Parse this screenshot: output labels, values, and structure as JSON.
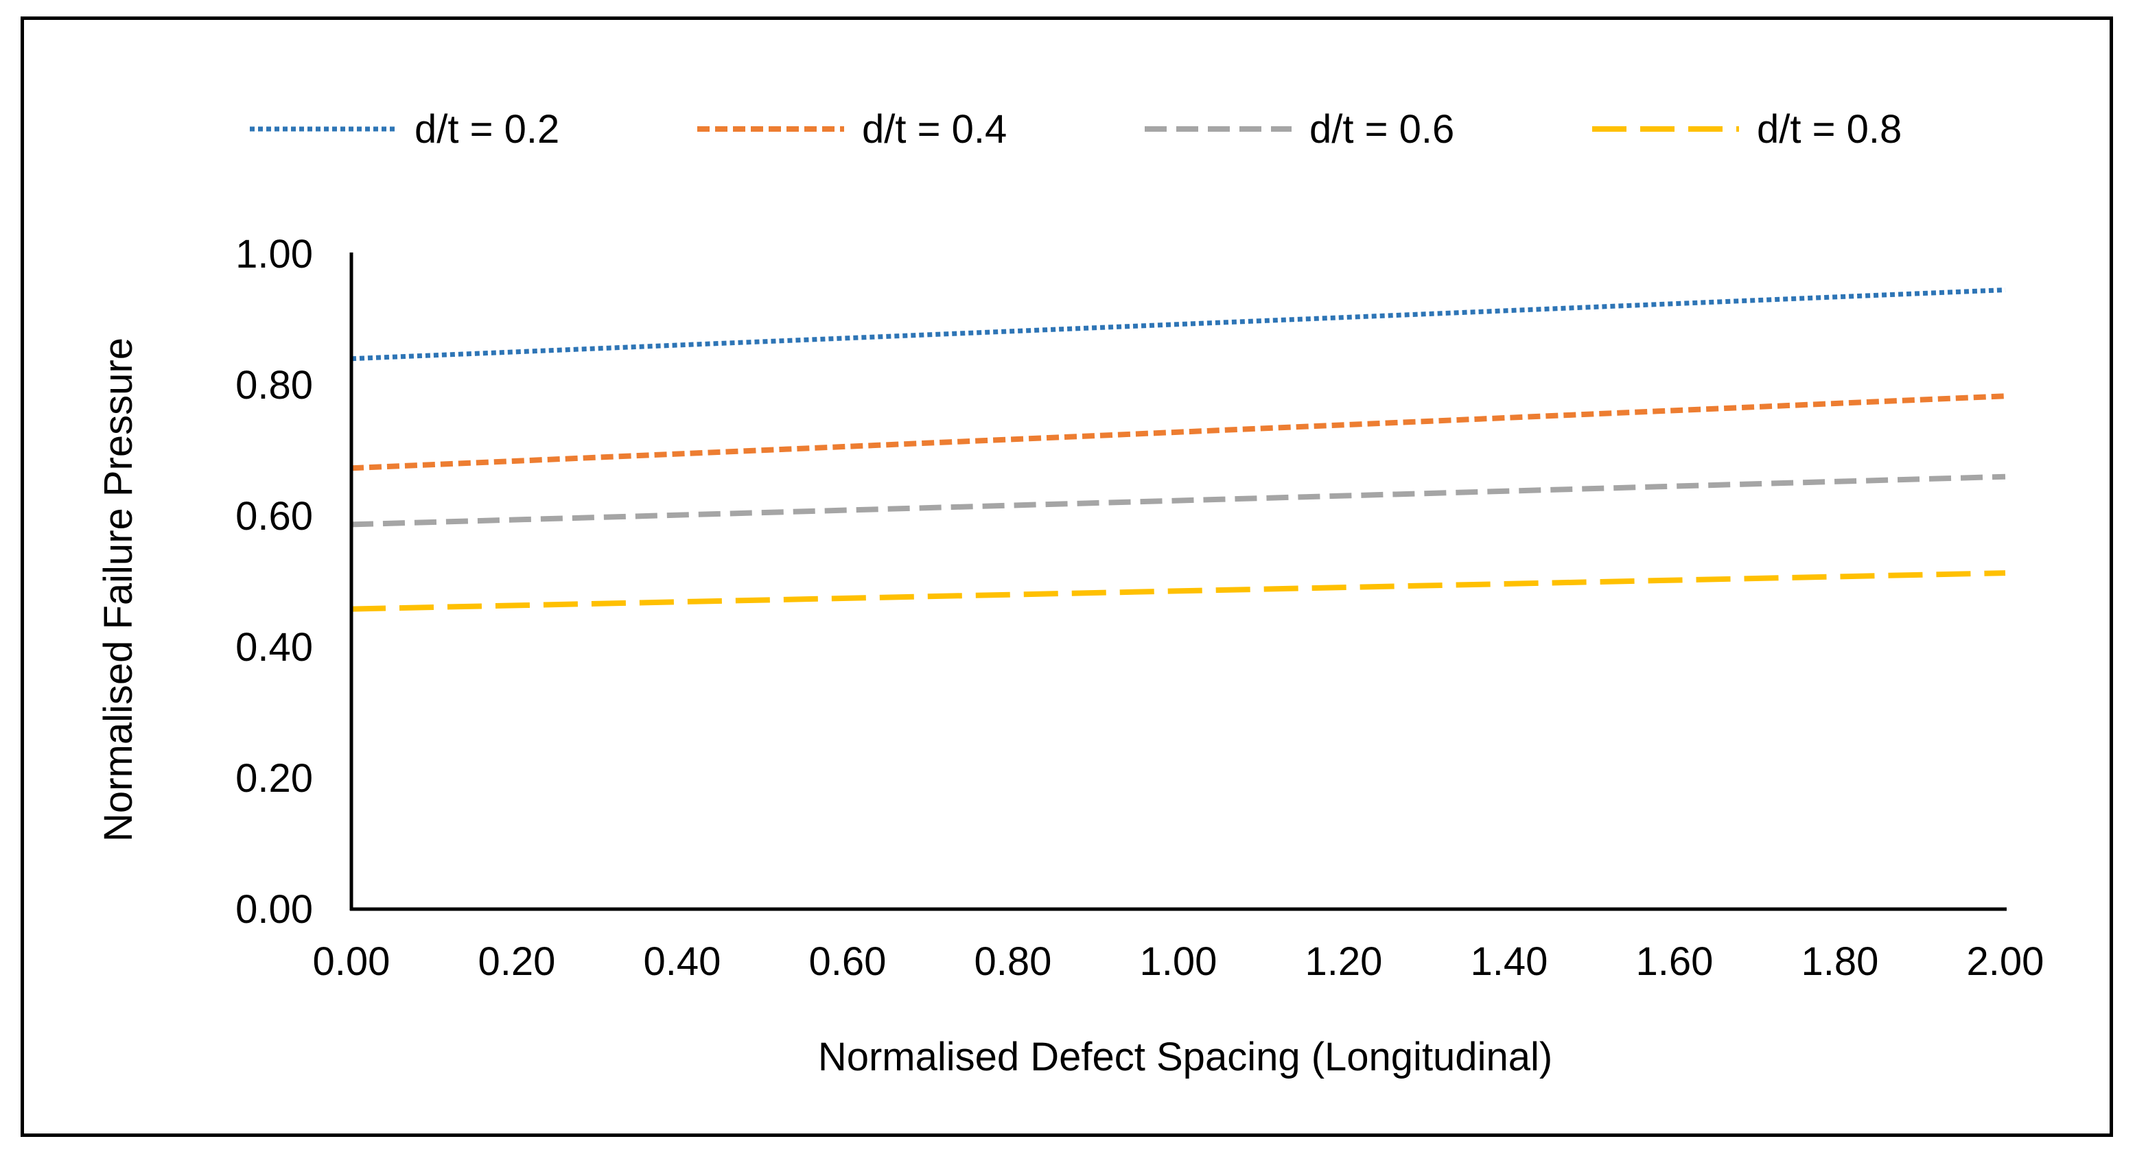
{
  "chart_data": {
    "type": "line",
    "title": "",
    "xlabel": "Normalised Defect Spacing (Longitudinal)",
    "ylabel": "Normalised Failure Pressure",
    "xlim": [
      0,
      2
    ],
    "ylim": [
      0,
      1
    ],
    "x_ticks": [
      "0.00",
      "0.20",
      "0.40",
      "0.60",
      "0.80",
      "1.00",
      "1.20",
      "1.40",
      "1.60",
      "1.80",
      "2.00"
    ],
    "y_ticks": [
      "0.00",
      "0.20",
      "0.40",
      "0.60",
      "0.80",
      "1.00"
    ],
    "grid": false,
    "legend_position": "top",
    "series": [
      {
        "name": "d/t = 0.2",
        "color": "#2E75B6",
        "style": "dotted",
        "x": [
          0,
          2
        ],
        "values": [
          0.84,
          0.945
        ]
      },
      {
        "name": "d/t = 0.4",
        "color": "#ED7D31",
        "style": "short-dash",
        "x": [
          0,
          2
        ],
        "values": [
          0.673,
          0.783
        ]
      },
      {
        "name": "d/t = 0.6",
        "color": "#A5A5A5",
        "style": "dash",
        "x": [
          0,
          2
        ],
        "values": [
          0.587,
          0.66
        ]
      },
      {
        "name": "d/t = 0.8",
        "color": "#FFC000",
        "style": "long-dash",
        "x": [
          0,
          2
        ],
        "values": [
          0.458,
          0.513
        ]
      }
    ]
  }
}
